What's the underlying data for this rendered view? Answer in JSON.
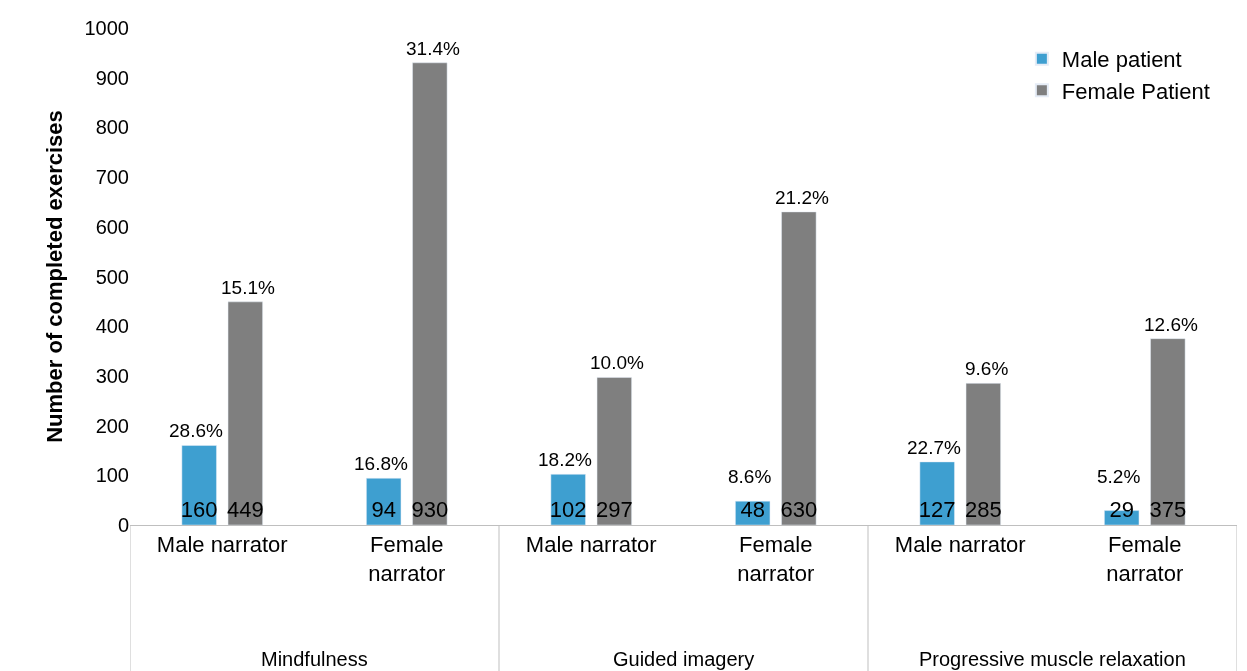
{
  "chart_data": {
    "type": "bar",
    "ylabel": "Number of completed exercises",
    "categories": [
      "Male narrator",
      "Female narrator",
      "Male narrator",
      "Female narrator",
      "Male narrator",
      "Female narrator"
    ],
    "series": [
      {
        "name": "Male patient",
        "color": "#3e9fd0",
        "values": [
          160,
          94,
          102,
          48,
          127,
          29
        ]
      },
      {
        "name": "Female Patient",
        "color": "#7f7f7f",
        "values": [
          449,
          930,
          297,
          630,
          285,
          375
        ]
      }
    ],
    "annotations": [
      "Mindfulness",
      "Guided imagery",
      "Progressive muscle relaxation",
      {
        "text": "28.6%",
        "y": 160
      },
      {
        "text": "16.8%",
        "y": 94
      },
      {
        "text": "18.2%",
        "y": 102
      },
      {
        "text": "8.6%",
        "y": 48
      },
      {
        "text": "22.7%",
        "y": 127
      },
      {
        "text": "5.2%",
        "y": 29
      },
      {
        "text": "15.1%",
        "y": 449
      },
      {
        "text": "31.4%",
        "y": 930
      },
      {
        "text": "10.0%",
        "y": 297
      },
      {
        "text": "21.2%",
        "y": 630
      },
      {
        "text": "9.6%",
        "y": 285
      },
      {
        "text": "12.6%",
        "y": 375
      }
    ],
    "data_labels": true,
    "ylim": [
      0,
      1000
    ],
    "yticks": [
      0,
      100,
      200,
      300,
      400,
      500,
      600,
      700,
      800,
      900,
      1000
    ],
    "legend": "top right"
  }
}
